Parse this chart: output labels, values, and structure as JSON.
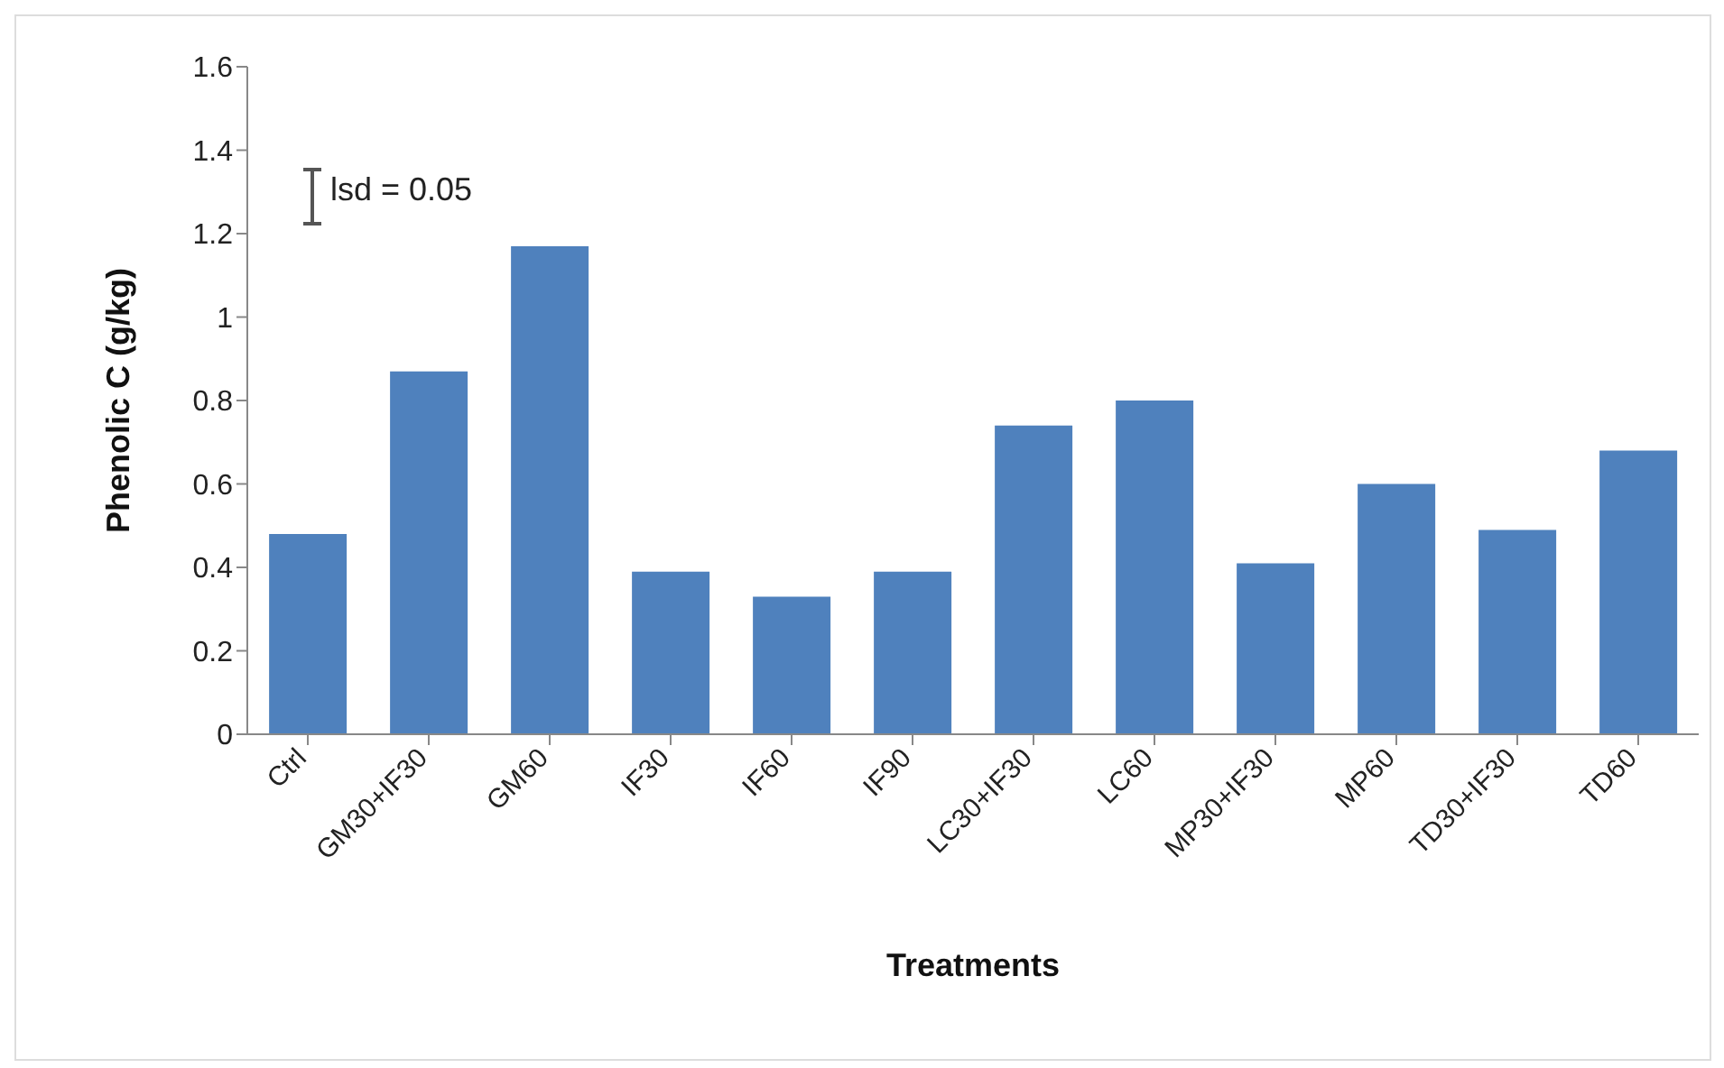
{
  "chart_data": {
    "type": "bar",
    "xlabel": "Treatments",
    "ylabel": "Phenolic C (g/kg)",
    "categories": [
      "Ctrl",
      "GM30+IF30",
      "GM60",
      "IF30",
      "IF60",
      "IF90",
      "LC30+IF30",
      "LC60",
      "MP30+IF30",
      "MP60",
      "TD30+IF30",
      "TD60"
    ],
    "values": [
      0.48,
      0.87,
      1.17,
      0.39,
      0.33,
      0.39,
      0.74,
      0.8,
      0.41,
      0.6,
      0.49,
      0.68
    ],
    "color": "#4f81bd",
    "ylim": [
      0,
      1.6
    ],
    "yticks": [
      0,
      0.2,
      0.4,
      0.6,
      0.8,
      1,
      1.2,
      1.4,
      1.6
    ],
    "grid": false,
    "legend": false,
    "annotations": [
      "lsd = 0.05"
    ]
  }
}
